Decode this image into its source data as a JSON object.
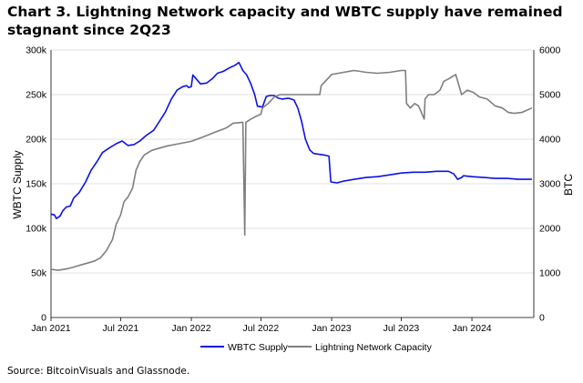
{
  "title": "Chart 3. Lightning Network capacity and WBTC supply have remained stagnant since 2Q23",
  "source": "Source: BitcoinVisuals and Glassnode.",
  "chart_data": {
    "type": "line",
    "x_type": "date",
    "xlim": [
      "2021-01-01",
      "2024-06-10"
    ],
    "x_ticks": [
      {
        "date": "2021-01-01",
        "label": "Jan 2021"
      },
      {
        "date": "2021-07-01",
        "label": "Jul 2021"
      },
      {
        "date": "2022-01-01",
        "label": "Jan 2022"
      },
      {
        "date": "2022-07-01",
        "label": "Jul 2022"
      },
      {
        "date": "2023-01-01",
        "label": "Jan 2023"
      },
      {
        "date": "2023-07-01",
        "label": "Jul 2023"
      },
      {
        "date": "2024-01-01",
        "label": "Jan 2024"
      }
    ],
    "ylabel_left": "WBTC Supply",
    "ylim_left": [
      0,
      300000
    ],
    "y_ticks_left": [
      {
        "value": 0,
        "label": "0"
      },
      {
        "value": 50000,
        "label": "50k"
      },
      {
        "value": 100000,
        "label": "100k"
      },
      {
        "value": 150000,
        "label": "150k"
      },
      {
        "value": 200000,
        "label": "200k"
      },
      {
        "value": 250000,
        "label": "250k"
      },
      {
        "value": 300000,
        "label": "300k"
      }
    ],
    "ylabel_right": "BTC",
    "ylim_right": [
      0,
      6000
    ],
    "y_ticks_right": [
      {
        "value": 0,
        "label": "0"
      },
      {
        "value": 1000,
        "label": "1000"
      },
      {
        "value": 2000,
        "label": "2000"
      },
      {
        "value": 3000,
        "label": "3000"
      },
      {
        "value": 4000,
        "label": "4000"
      },
      {
        "value": 5000,
        "label": "5000"
      },
      {
        "value": 6000,
        "label": "6000"
      }
    ],
    "grid": "horizontal",
    "legend_position": "bottom",
    "series": [
      {
        "name": "WBTC Supply",
        "axis": "left",
        "color": "#0a12e6",
        "points": [
          [
            "2021-01-01",
            116000
          ],
          [
            "2021-01-10",
            115000
          ],
          [
            "2021-01-15",
            111000
          ],
          [
            "2021-01-25",
            114000
          ],
          [
            "2021-02-01",
            120000
          ],
          [
            "2021-02-10",
            124000
          ],
          [
            "2021-02-20",
            125000
          ],
          [
            "2021-03-01",
            134000
          ],
          [
            "2021-03-15",
            140000
          ],
          [
            "2021-04-01",
            152000
          ],
          [
            "2021-04-15",
            165000
          ],
          [
            "2021-05-01",
            175000
          ],
          [
            "2021-05-15",
            185000
          ],
          [
            "2021-06-01",
            190000
          ],
          [
            "2021-06-20",
            195000
          ],
          [
            "2021-07-05",
            198000
          ],
          [
            "2021-07-20",
            193000
          ],
          [
            "2021-08-05",
            194000
          ],
          [
            "2021-08-20",
            198000
          ],
          [
            "2021-09-05",
            204000
          ],
          [
            "2021-09-25",
            210000
          ],
          [
            "2021-10-10",
            220000
          ],
          [
            "2021-10-25",
            230000
          ],
          [
            "2021-11-10",
            245000
          ],
          [
            "2021-11-25",
            255000
          ],
          [
            "2021-12-10",
            259000
          ],
          [
            "2021-12-20",
            260000
          ],
          [
            "2021-12-25",
            258000
          ],
          [
            "2022-01-01",
            259000
          ],
          [
            "2022-01-05",
            272000
          ],
          [
            "2022-01-15",
            267000
          ],
          [
            "2022-01-25",
            262000
          ],
          [
            "2022-02-10",
            263000
          ],
          [
            "2022-02-25",
            268000
          ],
          [
            "2022-03-10",
            274000
          ],
          [
            "2022-03-25",
            276000
          ],
          [
            "2022-04-10",
            280000
          ],
          [
            "2022-04-25",
            283000
          ],
          [
            "2022-05-05",
            286000
          ],
          [
            "2022-05-15",
            277000
          ],
          [
            "2022-05-25",
            272000
          ],
          [
            "2022-06-05",
            262000
          ],
          [
            "2022-06-15",
            250000
          ],
          [
            "2022-06-22",
            237000
          ],
          [
            "2022-07-05",
            236000
          ],
          [
            "2022-07-15",
            248000
          ],
          [
            "2022-07-25",
            249000
          ],
          [
            "2022-08-05",
            249000
          ],
          [
            "2022-08-15",
            246000
          ],
          [
            "2022-08-25",
            245000
          ],
          [
            "2022-09-10",
            246000
          ],
          [
            "2022-09-25",
            244000
          ],
          [
            "2022-10-05",
            235000
          ],
          [
            "2022-10-15",
            220000
          ],
          [
            "2022-10-25",
            200000
          ],
          [
            "2022-11-05",
            188000
          ],
          [
            "2022-11-15",
            184000
          ],
          [
            "2022-12-01",
            183000
          ],
          [
            "2022-12-15",
            182000
          ],
          [
            "2022-12-25",
            181000
          ],
          [
            "2022-12-30",
            152000
          ],
          [
            "2023-01-15",
            151000
          ],
          [
            "2023-02-01",
            153000
          ],
          [
            "2023-03-01",
            155000
          ],
          [
            "2023-04-01",
            157000
          ],
          [
            "2023-05-01",
            158000
          ],
          [
            "2023-06-01",
            160000
          ],
          [
            "2023-07-01",
            162000
          ],
          [
            "2023-08-01",
            163000
          ],
          [
            "2023-09-01",
            163000
          ],
          [
            "2023-10-01",
            164000
          ],
          [
            "2023-11-01",
            164000
          ],
          [
            "2023-11-15",
            161000
          ],
          [
            "2023-11-25",
            155000
          ],
          [
            "2023-12-05",
            157000
          ],
          [
            "2023-12-10",
            159000
          ],
          [
            "2024-01-01",
            158000
          ],
          [
            "2024-02-01",
            157000
          ],
          [
            "2024-03-01",
            156000
          ],
          [
            "2024-04-01",
            156000
          ],
          [
            "2024-05-01",
            155000
          ],
          [
            "2024-06-05",
            155000
          ]
        ]
      },
      {
        "name": "Lightning Network Capacity",
        "axis": "right",
        "color": "#7f7f7f",
        "points": [
          [
            "2021-01-01",
            1080
          ],
          [
            "2021-01-20",
            1060
          ],
          [
            "2021-02-10",
            1090
          ],
          [
            "2021-03-01",
            1130
          ],
          [
            "2021-03-20",
            1180
          ],
          [
            "2021-04-10",
            1230
          ],
          [
            "2021-04-25",
            1270
          ],
          [
            "2021-05-10",
            1340
          ],
          [
            "2021-05-25",
            1500
          ],
          [
            "2021-06-10",
            1750
          ],
          [
            "2021-06-20",
            2100
          ],
          [
            "2021-07-01",
            2300
          ],
          [
            "2021-07-10",
            2600
          ],
          [
            "2021-07-20",
            2700
          ],
          [
            "2021-08-01",
            2900
          ],
          [
            "2021-08-10",
            3300
          ],
          [
            "2021-08-20",
            3500
          ],
          [
            "2021-09-01",
            3650
          ],
          [
            "2021-09-20",
            3750
          ],
          [
            "2021-10-10",
            3800
          ],
          [
            "2021-11-01",
            3850
          ],
          [
            "2021-12-01",
            3900
          ],
          [
            "2022-01-01",
            3950
          ],
          [
            "2022-02-01",
            4050
          ],
          [
            "2022-03-01",
            4150
          ],
          [
            "2022-04-01",
            4250
          ],
          [
            "2022-04-10",
            4300
          ],
          [
            "2022-04-20",
            4360
          ],
          [
            "2022-05-15",
            4380
          ],
          [
            "2022-05-20",
            1850
          ],
          [
            "2022-05-23",
            4380
          ],
          [
            "2022-06-05",
            4450
          ],
          [
            "2022-06-20",
            4520
          ],
          [
            "2022-07-01",
            4560
          ],
          [
            "2022-07-05",
            4700
          ],
          [
            "2022-07-20",
            4800
          ],
          [
            "2022-08-05",
            4950
          ],
          [
            "2022-08-20",
            5000
          ],
          [
            "2022-09-01",
            5000
          ],
          [
            "2022-10-01",
            5000
          ],
          [
            "2022-11-01",
            5000
          ],
          [
            "2022-12-01",
            5000
          ],
          [
            "2022-12-05",
            5200
          ],
          [
            "2023-01-01",
            5450
          ],
          [
            "2023-02-01",
            5500
          ],
          [
            "2023-03-01",
            5540
          ],
          [
            "2023-04-01",
            5500
          ],
          [
            "2023-05-01",
            5480
          ],
          [
            "2023-06-01",
            5500
          ],
          [
            "2023-07-01",
            5540
          ],
          [
            "2023-07-12",
            5540
          ],
          [
            "2023-07-15",
            4800
          ],
          [
            "2023-07-25",
            4700
          ],
          [
            "2023-08-05",
            4800
          ],
          [
            "2023-08-15",
            4750
          ],
          [
            "2023-08-25",
            4550
          ],
          [
            "2023-08-30",
            4450
          ],
          [
            "2023-09-01",
            4900
          ],
          [
            "2023-09-10",
            5000
          ],
          [
            "2023-09-25",
            5000
          ],
          [
            "2023-10-10",
            5100
          ],
          [
            "2023-10-20",
            5300
          ],
          [
            "2023-11-01",
            5350
          ],
          [
            "2023-11-10",
            5400
          ],
          [
            "2023-11-20",
            5450
          ],
          [
            "2023-12-05",
            5000
          ],
          [
            "2023-12-20",
            5100
          ],
          [
            "2024-01-05",
            5050
          ],
          [
            "2024-01-20",
            4950
          ],
          [
            "2024-02-10",
            4900
          ],
          [
            "2024-03-01",
            4750
          ],
          [
            "2024-03-20",
            4700
          ],
          [
            "2024-04-05",
            4600
          ],
          [
            "2024-04-20",
            4580
          ],
          [
            "2024-05-10",
            4600
          ],
          [
            "2024-06-05",
            4700
          ]
        ]
      }
    ]
  }
}
